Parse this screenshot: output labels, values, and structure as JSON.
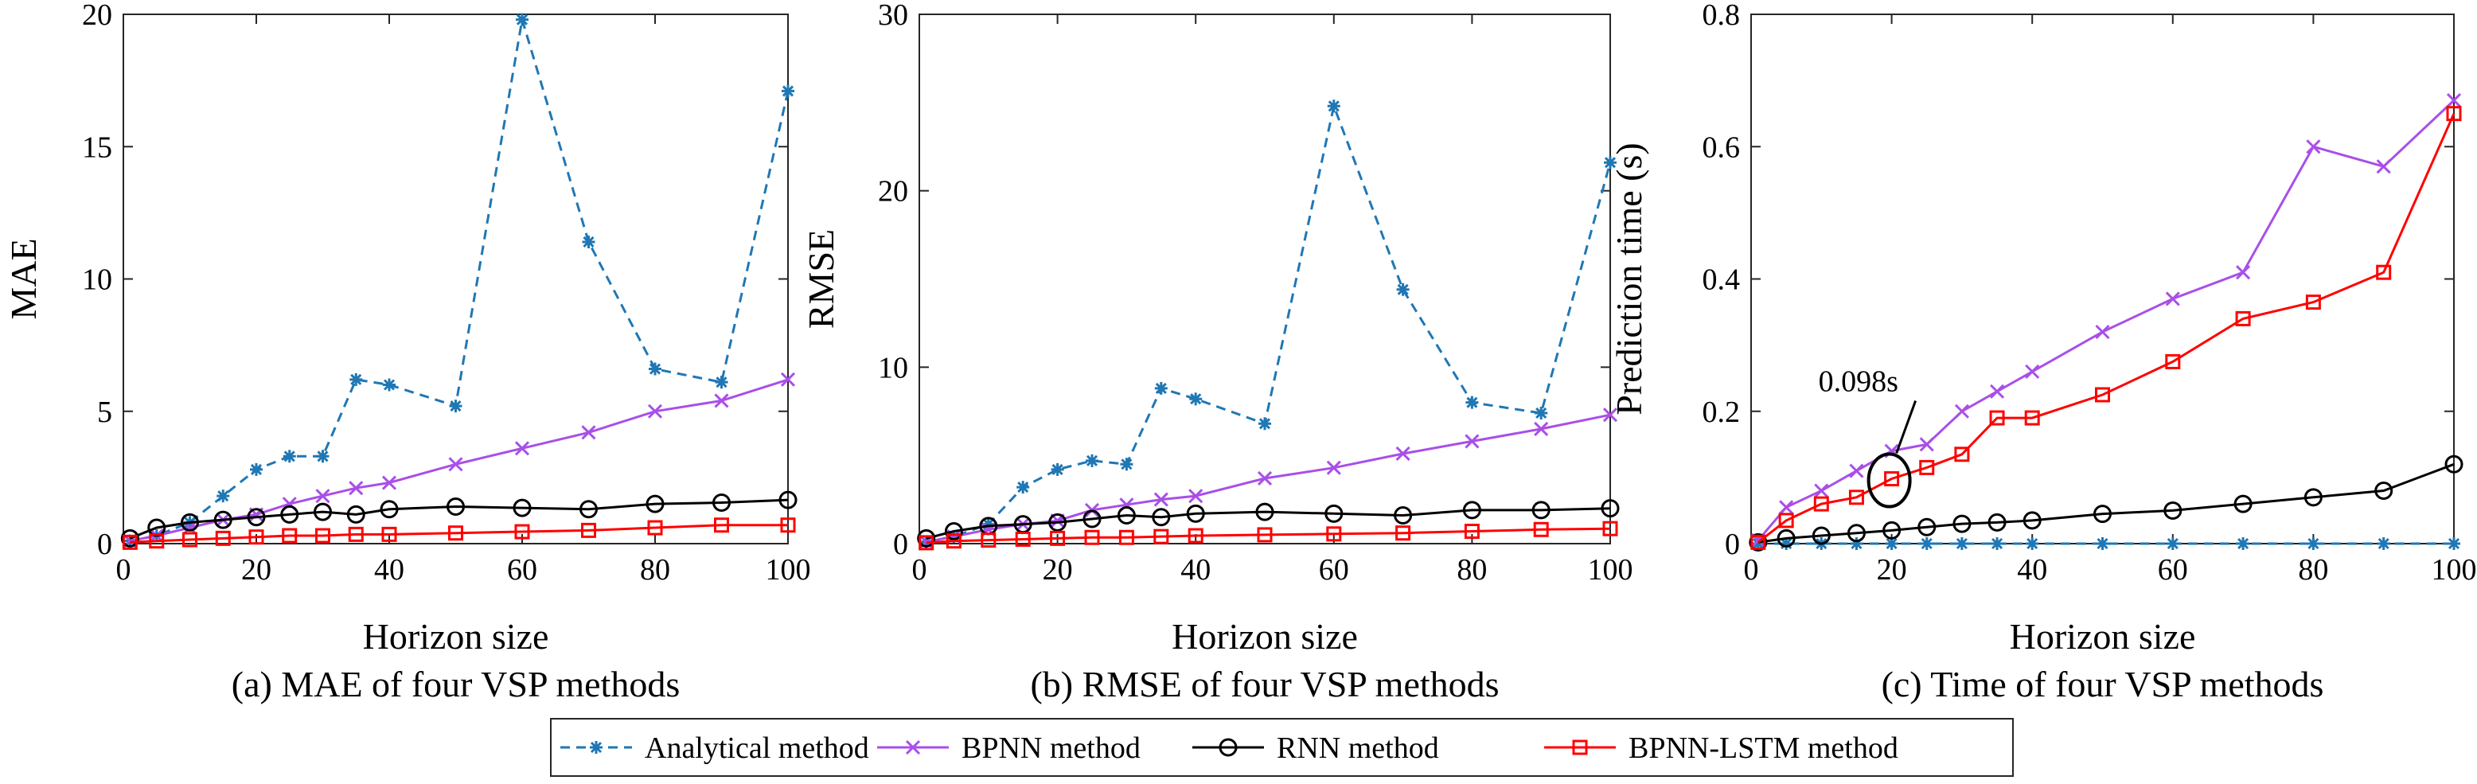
{
  "legend": {
    "placement": "bottom-center",
    "entries": [
      {
        "label": "Analytical method",
        "color": "#1f77b4",
        "dash": true,
        "marker": "asterisk"
      },
      {
        "label": "BPNN method",
        "color": "#a94fe8",
        "dash": false,
        "marker": "x"
      },
      {
        "label": "RNN method",
        "color": "#000000",
        "dash": false,
        "marker": "circle"
      },
      {
        "label": "BPNN-LSTM method",
        "color": "#ff0000",
        "dash": false,
        "marker": "square"
      }
    ]
  },
  "chart_data": [
    {
      "type": "line",
      "panel_key": "mae",
      "caption": "(a) MAE of four VSP methods",
      "xlabel": "Horizon size",
      "ylabel": "MAE",
      "xlim": [
        0,
        100
      ],
      "ylim": [
        0,
        20
      ],
      "xticks": [
        0,
        20,
        40,
        60,
        80,
        100
      ],
      "yticks": [
        0,
        5,
        10,
        15,
        20
      ],
      "grid": false,
      "x": [
        1,
        5,
        10,
        15,
        20,
        25,
        30,
        35,
        40,
        50,
        60,
        70,
        80,
        90,
        100
      ],
      "series": [
        {
          "name": "Analytical method",
          "values": [
            0.1,
            0.3,
            0.8,
            1.8,
            2.8,
            3.3,
            3.3,
            6.2,
            6.0,
            5.2,
            19.8,
            11.4,
            6.6,
            6.1,
            17.1
          ]
        },
        {
          "name": "BPNN method",
          "values": [
            0.1,
            0.3,
            0.6,
            0.9,
            1.1,
            1.5,
            1.8,
            2.1,
            2.3,
            3.0,
            3.6,
            4.2,
            5.0,
            5.4,
            6.2
          ]
        },
        {
          "name": "RNN method",
          "values": [
            0.2,
            0.6,
            0.8,
            0.9,
            1.0,
            1.1,
            1.2,
            1.1,
            1.3,
            1.4,
            1.35,
            1.3,
            1.5,
            1.55,
            1.65
          ]
        },
        {
          "name": "BPNN-LSTM method",
          "values": [
            0.05,
            0.1,
            0.15,
            0.2,
            0.25,
            0.3,
            0.3,
            0.35,
            0.35,
            0.4,
            0.45,
            0.5,
            0.6,
            0.7,
            0.7
          ]
        }
      ]
    },
    {
      "type": "line",
      "panel_key": "rmse",
      "caption": "(b) RMSE of four VSP methods",
      "xlabel": "Horizon size",
      "ylabel": "RMSE",
      "xlim": [
        0,
        100
      ],
      "ylim": [
        0,
        30
      ],
      "xticks": [
        0,
        20,
        40,
        60,
        80,
        100
      ],
      "yticks": [
        0,
        10,
        20,
        30
      ],
      "grid": false,
      "x": [
        1,
        5,
        10,
        15,
        20,
        25,
        30,
        35,
        40,
        50,
        60,
        70,
        80,
        90,
        100
      ],
      "series": [
        {
          "name": "Analytical method",
          "values": [
            0.1,
            0.4,
            1.1,
            3.2,
            4.2,
            4.7,
            4.5,
            8.8,
            8.2,
            6.8,
            24.8,
            14.4,
            8.0,
            7.4,
            21.6
          ]
        },
        {
          "name": "BPNN method",
          "values": [
            0.1,
            0.4,
            0.8,
            1.1,
            1.3,
            1.9,
            2.2,
            2.5,
            2.7,
            3.7,
            4.3,
            5.1,
            5.8,
            6.5,
            7.3
          ]
        },
        {
          "name": "RNN method",
          "values": [
            0.3,
            0.7,
            1.0,
            1.1,
            1.2,
            1.4,
            1.6,
            1.5,
            1.7,
            1.8,
            1.7,
            1.6,
            1.9,
            1.9,
            2.0
          ]
        },
        {
          "name": "BPNN-LSTM method",
          "values": [
            0.05,
            0.15,
            0.2,
            0.25,
            0.3,
            0.35,
            0.35,
            0.4,
            0.45,
            0.5,
            0.55,
            0.6,
            0.7,
            0.8,
            0.85
          ]
        }
      ]
    },
    {
      "type": "line",
      "panel_key": "time",
      "caption": "(c) Time of four VSP methods",
      "xlabel": "Horizon size",
      "ylabel": "Prediction time (s)",
      "xlim": [
        0,
        100
      ],
      "ylim": [
        0,
        0.8
      ],
      "xticks": [
        0,
        20,
        40,
        60,
        80,
        100
      ],
      "yticks": [
        0,
        0.2,
        0.4,
        0.6,
        0.8
      ],
      "grid": false,
      "annotation": {
        "text": "0.098s",
        "x": 20,
        "y": 0.098
      },
      "x": [
        1,
        5,
        10,
        15,
        20,
        25,
        30,
        35,
        40,
        50,
        60,
        70,
        80,
        90,
        100
      ],
      "series": [
        {
          "name": "Analytical method",
          "values": [
            0,
            0,
            0,
            0,
            0,
            0,
            0,
            0,
            0,
            0,
            0,
            0,
            0,
            0,
            0
          ]
        },
        {
          "name": "BPNN method",
          "values": [
            0.005,
            0.055,
            0.08,
            0.11,
            0.14,
            0.15,
            0.2,
            0.23,
            0.26,
            0.32,
            0.37,
            0.41,
            0.6,
            0.57,
            0.67
          ]
        },
        {
          "name": "RNN method",
          "values": [
            0.002,
            0.008,
            0.012,
            0.016,
            0.02,
            0.025,
            0.03,
            0.032,
            0.035,
            0.045,
            0.05,
            0.06,
            0.07,
            0.08,
            0.12
          ]
        },
        {
          "name": "BPNN-LSTM method",
          "values": [
            0.002,
            0.035,
            0.06,
            0.07,
            0.098,
            0.115,
            0.135,
            0.19,
            0.19,
            0.225,
            0.275,
            0.34,
            0.365,
            0.41,
            0.65
          ]
        }
      ]
    }
  ]
}
